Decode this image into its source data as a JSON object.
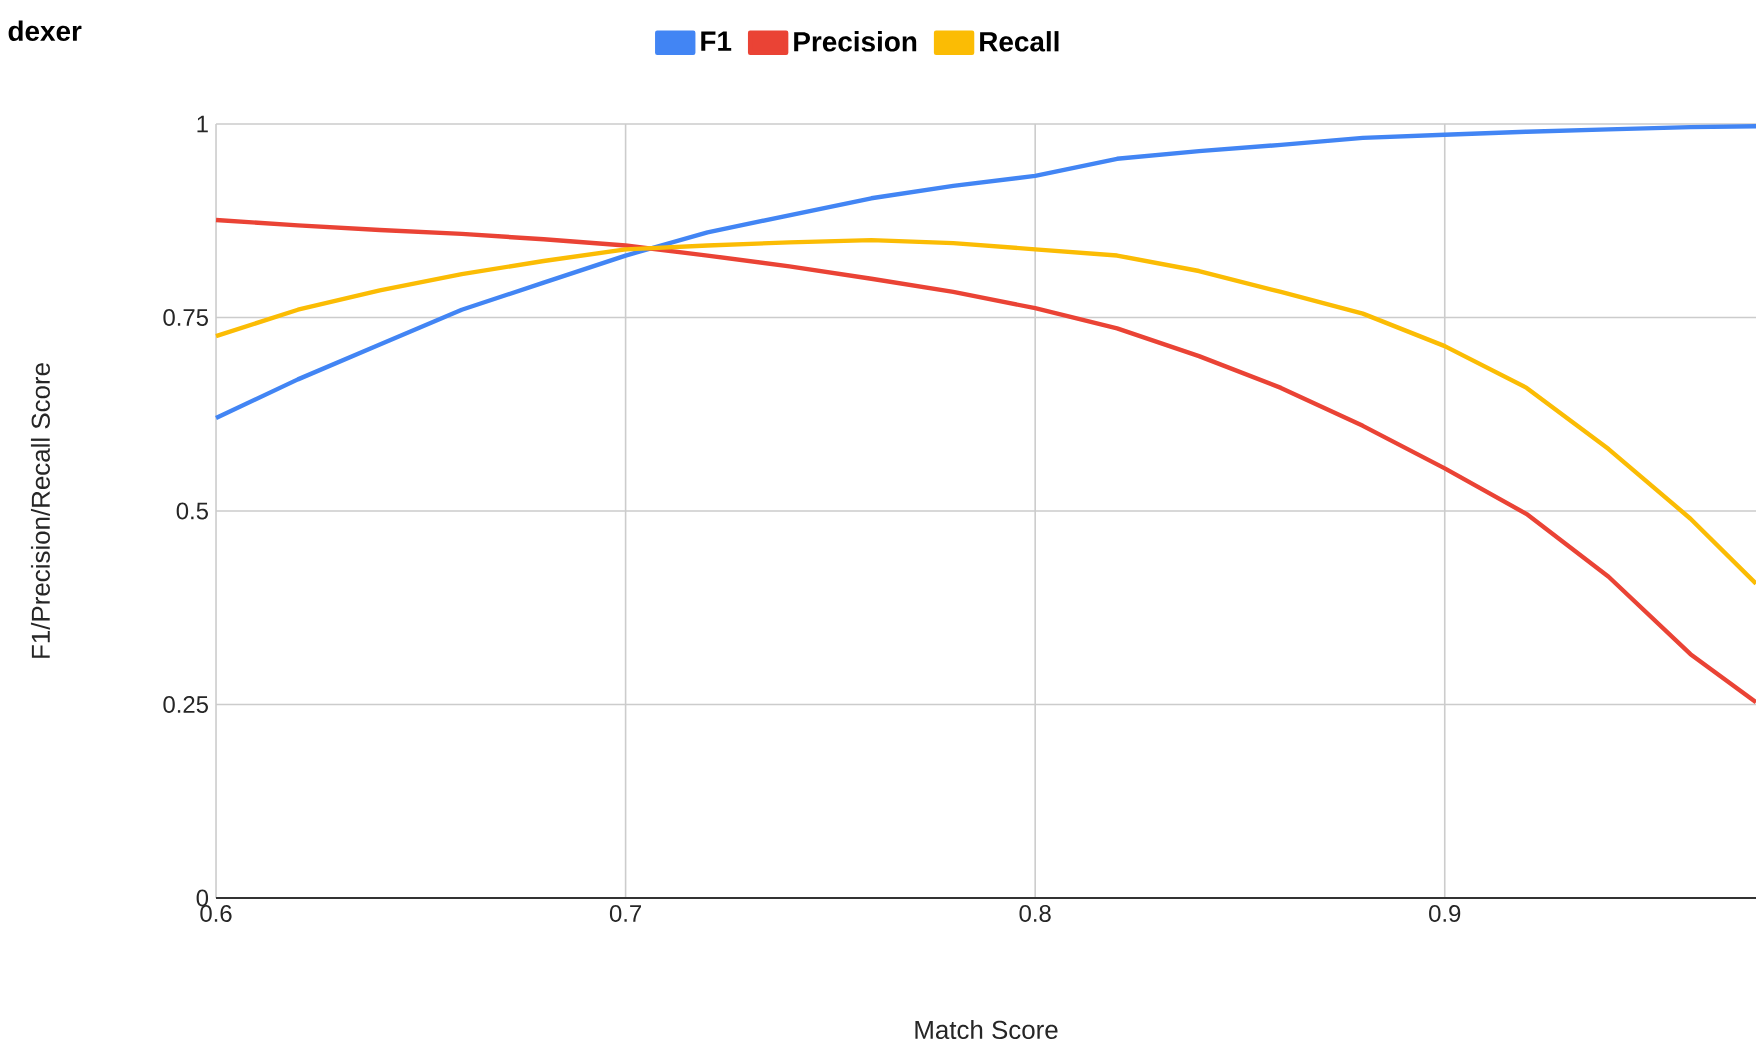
{
  "chart_data": {
    "type": "line",
    "title": "dexer",
    "xlabel": "Match Score",
    "ylabel": "F1/Precision/Recall Score",
    "x": [
      0.6,
      0.62,
      0.64,
      0.66,
      0.68,
      0.7,
      0.72,
      0.74,
      0.76,
      0.78,
      0.8,
      0.82,
      0.84,
      0.86,
      0.88,
      0.9,
      0.92,
      0.94,
      0.96,
      0.976
    ],
    "series": [
      {
        "name": "F1",
        "color": "#4285f4",
        "values": [
          0.62,
          0.67,
          0.715,
          0.76,
          0.795,
          0.83,
          0.86,
          0.882,
          0.904,
          0.92,
          0.933,
          0.955,
          0.965,
          0.973,
          0.982,
          0.986,
          0.99,
          0.993,
          0.996,
          0.997
        ]
      },
      {
        "name": "Precision",
        "color": "#ea4335",
        "values": [
          0.876,
          0.869,
          0.863,
          0.858,
          0.851,
          0.843,
          0.83,
          0.816,
          0.8,
          0.783,
          0.762,
          0.736,
          0.7,
          0.659,
          0.61,
          0.555,
          0.496,
          0.415,
          0.315,
          0.253
        ]
      },
      {
        "name": "Recall",
        "color": "#fbbc04",
        "values": [
          0.726,
          0.76,
          0.785,
          0.806,
          0.823,
          0.838,
          0.843,
          0.847,
          0.85,
          0.846,
          0.838,
          0.83,
          0.81,
          0.783,
          0.755,
          0.713,
          0.659,
          0.58,
          0.49,
          0.406
        ]
      }
    ],
    "xlim": [
      0.6,
      0.976
    ],
    "ylim": [
      0,
      1
    ],
    "xticks": [
      0.6,
      0.7,
      0.8,
      0.9
    ],
    "yticks": [
      0,
      {
        "value": 0.25,
        "label": "0.25"
      },
      {
        "value": 0.5,
        "label": "0.5"
      },
      {
        "value": 0.75,
        "label": "0.75"
      },
      1
    ],
    "grid": true,
    "legend": "top",
    "marker": "none",
    "line_style": "solid"
  }
}
